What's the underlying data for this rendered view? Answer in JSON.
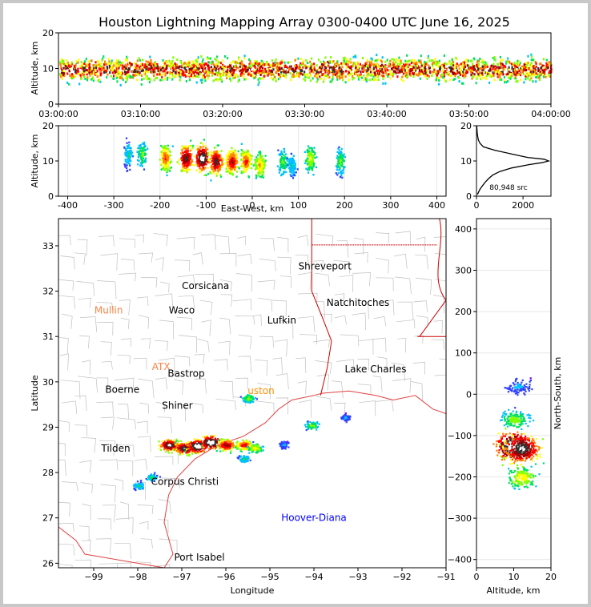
{
  "chart_data": {
    "type": "scatter",
    "title": "Houston Lightning Mapping Array 0300-0400 UTC June 16, 2025",
    "colors": {
      "density_scale": [
        "#8000ff",
        "#3040ff",
        "#00c0ff",
        "#00e060",
        "#80ff00",
        "#ffff00",
        "#ff8000",
        "#ff0000",
        "#a00000",
        "#303030",
        "#ffffff"
      ],
      "state_borders": "#cc0000",
      "county_lines": "#c0c0c0",
      "coastline": "#e04040"
    },
    "panels": {
      "time_height": {
        "ylabel": "Altitude, km",
        "ylim": [
          0,
          20
        ],
        "yticks": [
          0,
          10,
          20
        ],
        "xlim": [
          "03:00:00",
          "04:00:00"
        ],
        "xticks": [
          "03:00:00",
          "03:10:00",
          "03:20:00",
          "03:30:00",
          "03:40:00",
          "03:50:00",
          "04:00:00"
        ],
        "core_altitude_km": [
          5,
          15
        ],
        "peak_altitude_km": 10
      },
      "ew_height": {
        "xlabel": "East-West, km",
        "ylabel": "Altitude, km",
        "xlim": [
          -420,
          420
        ],
        "xticks": [
          -400,
          -300,
          -200,
          -100,
          0,
          100,
          200,
          300,
          400
        ],
        "ylim": [
          0,
          20
        ],
        "yticks": [
          0,
          10,
          20
        ],
        "cells": [
          {
            "x": -270,
            "alt": 12,
            "intensity": 0.3
          },
          {
            "x": -240,
            "alt": 12,
            "intensity": 0.4
          },
          {
            "x": -190,
            "alt": 11,
            "intensity": 0.7
          },
          {
            "x": -145,
            "alt": 11,
            "intensity": 0.9
          },
          {
            "x": -110,
            "alt": 11,
            "intensity": 1.0
          },
          {
            "x": -80,
            "alt": 10,
            "intensity": 0.9
          },
          {
            "x": -45,
            "alt": 10,
            "intensity": 0.8
          },
          {
            "x": -15,
            "alt": 10,
            "intensity": 0.7
          },
          {
            "x": 15,
            "alt": 9,
            "intensity": 0.6
          },
          {
            "x": 65,
            "alt": 10,
            "intensity": 0.4
          },
          {
            "x": 85,
            "alt": 9,
            "intensity": 0.3
          },
          {
            "x": 125,
            "alt": 11,
            "intensity": 0.5
          },
          {
            "x": 190,
            "alt": 10,
            "intensity": 0.4
          }
        ]
      },
      "histogram": {
        "xlim": [
          0,
          3200
        ],
        "xticks": [
          0,
          2000
        ],
        "ylim": [
          0,
          20
        ],
        "yticks": [
          0,
          10,
          20
        ],
        "annotation": "80,948 src",
        "profile": [
          [
            0.5,
            40
          ],
          [
            1,
            80
          ],
          [
            2,
            150
          ],
          [
            3,
            260
          ],
          [
            4,
            380
          ],
          [
            5,
            520
          ],
          [
            6,
            700
          ],
          [
            7,
            1000
          ],
          [
            8,
            1500
          ],
          [
            9,
            2300
          ],
          [
            9.5,
            2800
          ],
          [
            10,
            3100
          ],
          [
            10.5,
            2900
          ],
          [
            11,
            2200
          ],
          [
            12,
            1500
          ],
          [
            13,
            800
          ],
          [
            14,
            300
          ],
          [
            15,
            150
          ],
          [
            16,
            80
          ],
          [
            17,
            50
          ],
          [
            18,
            30
          ],
          [
            19,
            20
          ],
          [
            20,
            10
          ]
        ]
      },
      "map": {
        "xlabel": "Longitude",
        "ylabel": "Latitude",
        "xlim": [
          -99.8,
          -91
        ],
        "ylim": [
          25.9,
          33.6
        ],
        "xticks": [
          -99,
          -98,
          -97,
          -96,
          -95,
          -94,
          -93,
          -92,
          -91
        ],
        "yticks": [
          26,
          27,
          28,
          29,
          30,
          31,
          32,
          33
        ],
        "cities": [
          {
            "name": "Shreveport",
            "lon": -93.75,
            "lat": 32.55,
            "color": "#000000"
          },
          {
            "name": "Corsicana",
            "lon": -96.46,
            "lat": 32.12,
            "color": "#000000"
          },
          {
            "name": "Mullin",
            "lon": -98.66,
            "lat": 31.58,
            "color": "#ff8040"
          },
          {
            "name": "Waco",
            "lon": -97.0,
            "lat": 31.58,
            "color": "#000000"
          },
          {
            "name": "Natchitoches",
            "lon": -93.0,
            "lat": 31.75,
            "color": "#000000"
          },
          {
            "name": "Lufkin",
            "lon": -94.73,
            "lat": 31.36,
            "color": "#000000"
          },
          {
            "name": "ATX",
            "lon": -97.47,
            "lat": 30.33,
            "color": "#ff8040"
          },
          {
            "name": "Bastrop",
            "lon": -96.9,
            "lat": 30.18,
            "color": "#000000"
          },
          {
            "name": "Lake Charles",
            "lon": -92.6,
            "lat": 30.28,
            "color": "#000000"
          },
          {
            "name": "Boerne",
            "lon": -98.35,
            "lat": 29.83,
            "color": "#000000"
          },
          {
            "name": "uston",
            "lon": -95.2,
            "lat": 29.8,
            "color": "#ff9000"
          },
          {
            "name": "Shiner",
            "lon": -97.1,
            "lat": 29.48,
            "color": "#000000"
          },
          {
            "name": "Tilden",
            "lon": -98.5,
            "lat": 28.53,
            "color": "#000000"
          },
          {
            "name": "Corpus Christi",
            "lon": -96.93,
            "lat": 27.8,
            "color": "#000000"
          },
          {
            "name": "Hoover-Diana",
            "lon": -94.0,
            "lat": 27.0,
            "color": "#0000ff"
          },
          {
            "name": "Port Isabel",
            "lon": -96.6,
            "lat": 26.13,
            "color": "#000000"
          }
        ],
        "cells": [
          {
            "lon": -97.3,
            "lat": 28.62,
            "intensity": 0.9
          },
          {
            "lon": -96.95,
            "lat": 28.55,
            "intensity": 0.9
          },
          {
            "lon": -96.65,
            "lat": 28.6,
            "intensity": 1.0
          },
          {
            "lon": -96.35,
            "lat": 28.68,
            "intensity": 1.0
          },
          {
            "lon": -96.0,
            "lat": 28.62,
            "intensity": 0.8
          },
          {
            "lon": -95.6,
            "lat": 28.62,
            "intensity": 0.7
          },
          {
            "lon": -95.35,
            "lat": 28.55,
            "intensity": 0.5
          },
          {
            "lon": -95.5,
            "lat": 29.65,
            "intensity": 0.4
          },
          {
            "lon": -94.05,
            "lat": 29.05,
            "intensity": 0.4
          },
          {
            "lon": -93.3,
            "lat": 29.22,
            "intensity": 0.2
          },
          {
            "lon": -97.7,
            "lat": 27.9,
            "intensity": 0.3
          },
          {
            "lon": -98.0,
            "lat": 27.72,
            "intensity": 0.3
          },
          {
            "lon": -95.6,
            "lat": 28.32,
            "intensity": 0.3
          },
          {
            "lon": -94.7,
            "lat": 28.62,
            "intensity": 0.2
          }
        ]
      },
      "ns_height": {
        "xlabel": "Altitude, km",
        "ylabel": "North-South, km",
        "xlim": [
          0,
          20
        ],
        "xticks": [
          0,
          10,
          20
        ],
        "ylim": [
          -420,
          425
        ],
        "yticks": [
          -400,
          -300,
          -200,
          -100,
          0,
          100,
          200,
          300,
          400
        ],
        "cells": [
          {
            "alt": 10,
            "ns": -125,
            "intensity": 1.0
          },
          {
            "alt": 12,
            "ns": -130,
            "intensity": 0.9
          },
          {
            "alt": 10,
            "ns": -60,
            "intensity": 0.4
          },
          {
            "alt": 12,
            "ns": -200,
            "intensity": 0.5
          },
          {
            "alt": 11,
            "ns": 20,
            "intensity": 0.2
          }
        ]
      }
    }
  }
}
